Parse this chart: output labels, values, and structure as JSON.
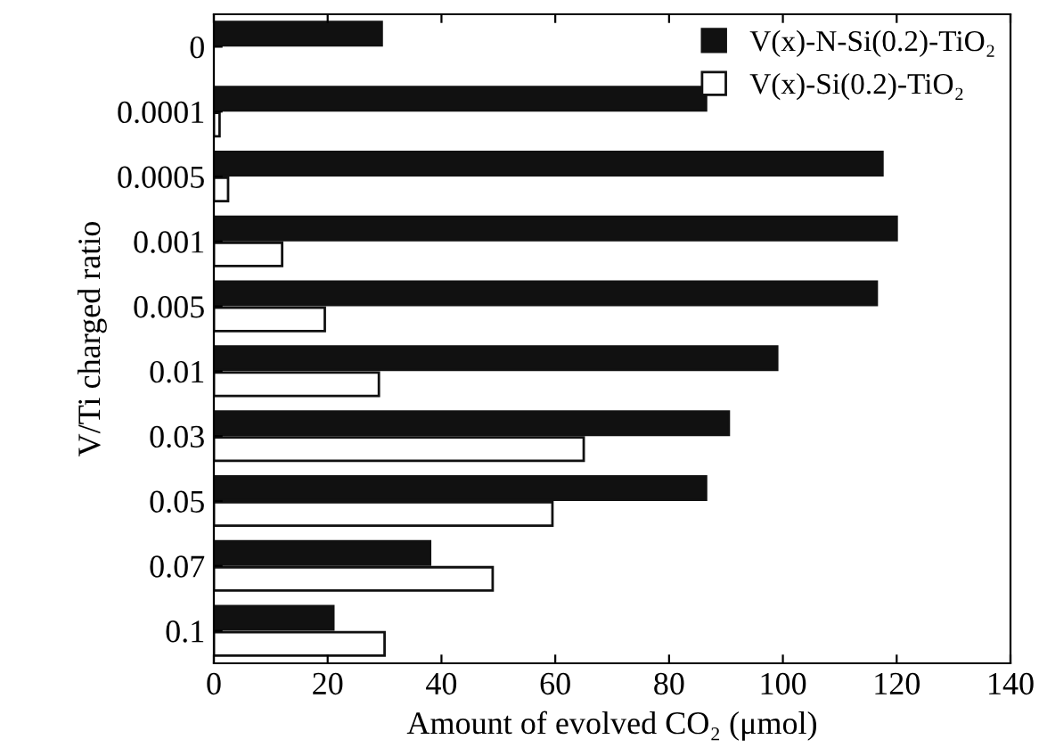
{
  "chart_data": {
    "type": "bar",
    "orientation": "horizontal",
    "xlabel": "Amount of evolved CO₂ (μmol)",
    "ylabel": "V/Ti charged ratio",
    "categories": [
      "0",
      "0.0001",
      "0.0005",
      "0.001",
      "0.005",
      "0.01",
      "0.03",
      "0.05",
      "0.07",
      "0.1"
    ],
    "series": [
      {
        "name": "V(x)-N-Si(0.2)-TiO₂",
        "color": "#111111",
        "values": [
          29.5,
          86.5,
          117.5,
          120,
          116.5,
          99,
          90.5,
          86.5,
          38,
          21
        ]
      },
      {
        "name": "V(x)-Si(0.2)-TiO₂",
        "color": "#ffffff",
        "values": [
          null,
          1,
          2.5,
          12,
          19.5,
          29,
          65,
          59.5,
          49,
          30
        ]
      }
    ],
    "xlim": [
      0,
      140
    ],
    "xticks": [
      0,
      20,
      40,
      60,
      80,
      100,
      120,
      140
    ],
    "grid": false,
    "legend": "top right"
  }
}
